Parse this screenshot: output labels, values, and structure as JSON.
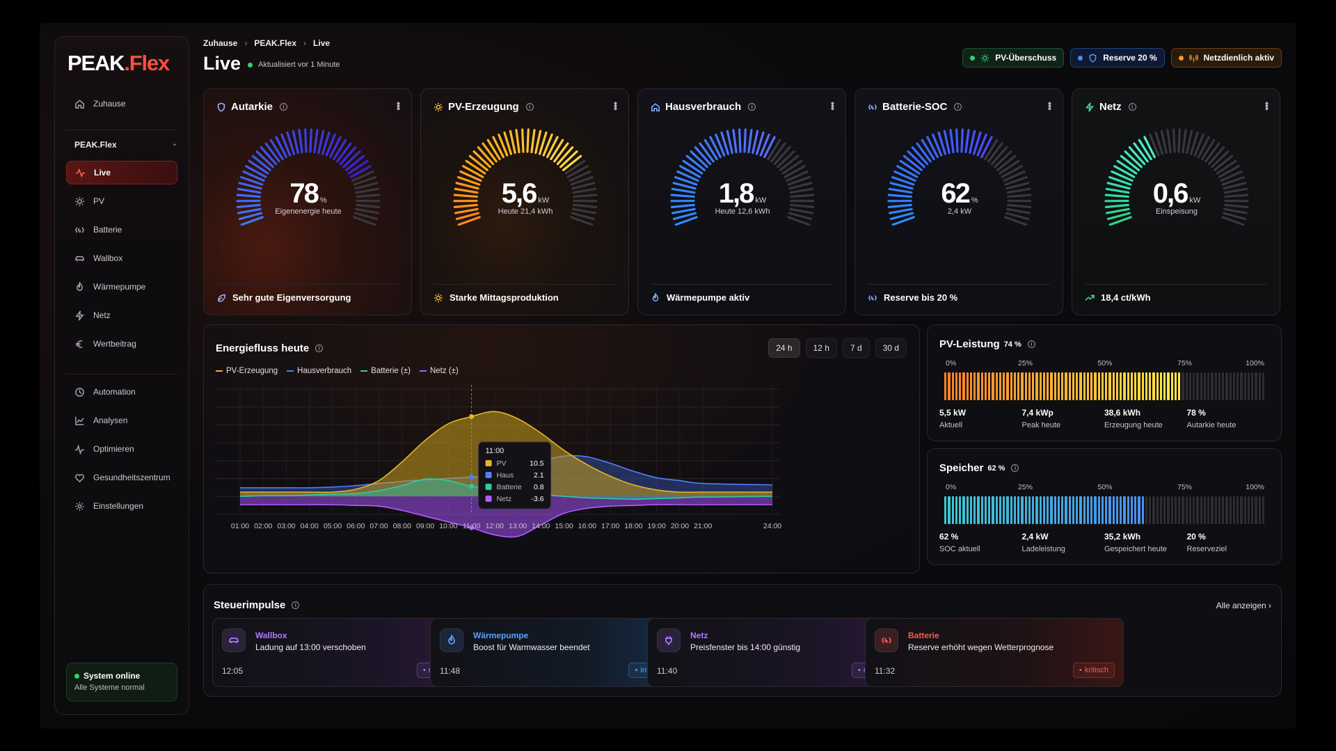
{
  "app": {
    "logo_main": "PEAK",
    "logo_dot": ".",
    "logo_flex": "Flex"
  },
  "sidebar": {
    "home": "Zuhause",
    "group": "PEAK.Flex",
    "items": [
      {
        "label": "Live",
        "icon": "activity-icon"
      },
      {
        "label": "PV",
        "icon": "sun-icon"
      },
      {
        "label": "Batterie",
        "icon": "battery-icon"
      },
      {
        "label": "Wallbox",
        "icon": "car-icon"
      },
      {
        "label": "Wärmepumpe",
        "icon": "flame-icon"
      },
      {
        "label": "Netz",
        "icon": "bolt-icon"
      },
      {
        "label": "Wertbeitrag",
        "icon": "euro-icon"
      }
    ],
    "tools": [
      {
        "label": "Automation"
      },
      {
        "label": "Analysen"
      },
      {
        "label": "Optimieren"
      },
      {
        "label": "Gesundheitszentrum"
      },
      {
        "label": "Einstellungen"
      }
    ],
    "status": {
      "title": "System online",
      "sub": "Alle Systeme normal"
    }
  },
  "header": {
    "breadcrumb": [
      "Zuhause",
      "PEAK.Flex",
      "Live"
    ],
    "title": "Live",
    "updated": "Aktualisiert vor 1 Minute",
    "chips": [
      {
        "label": "PV-Überschuss",
        "color": "#2fd46b"
      },
      {
        "label": "Reserve 20 %",
        "color": "#4a8cff"
      },
      {
        "label": "Netzdienlich aktiv",
        "color": "#f39a2b"
      }
    ]
  },
  "kpis": [
    {
      "title": "Autarkie",
      "value": "78",
      "unit": "%",
      "sub": "Eigenenergie heute",
      "footer": "Sehr gute Eigenversorgung",
      "fraction": 0.78
    },
    {
      "title": "PV-Erzeugung",
      "value": "5,6",
      "unit": "kW",
      "sub": "Heute 21,4 kWh",
      "footer": "Starke Mittagsproduktion",
      "fraction": 0.74
    },
    {
      "title": "Hausverbrauch",
      "value": "1,8",
      "unit": "kW",
      "sub": "Heute 12,6 kWh",
      "footer": "Wärmepumpe aktiv",
      "fraction": 0.62
    },
    {
      "title": "Batterie-SOC",
      "value": "62",
      "unit": "%",
      "sub": "2,4 kW",
      "footer": "Reserve bis 20 %",
      "fraction": 0.62
    },
    {
      "title": "Netz",
      "value": "0,6",
      "unit": "kW",
      "sub": "Einspeisung",
      "footer": "18,4 ct/kWh",
      "fraction": 0.4
    }
  ],
  "flow": {
    "title": "Energiefluss heute",
    "ranges": [
      "24 h",
      "12 h",
      "7 d",
      "30 d"
    ],
    "legend": [
      "PV-Erzeugung",
      "Hausverbrauch",
      "Batterie (±)",
      "Netz (±)"
    ],
    "tooltip": {
      "time": "11:00",
      "rows": [
        {
          "label": "PV",
          "value": "10.5"
        },
        {
          "label": "Haus",
          "value": "2.1"
        },
        {
          "label": "Batterie",
          "value": "0.8"
        },
        {
          "label": "Netz",
          "value": "-3.6"
        }
      ]
    }
  },
  "chart_data": {
    "type": "area",
    "title": "Energiefluss heute",
    "x": [
      "01:00",
      "02:00",
      "03:00",
      "04:00",
      "05:00",
      "06:00",
      "07:00",
      "08:00",
      "09:00",
      "10:00",
      "11:00",
      "12:00",
      "13:00",
      "14:00",
      "15:00",
      "16:00",
      "17:00",
      "18:00",
      "19:00",
      "20:00",
      "21:00",
      "24:00"
    ],
    "series": [
      {
        "name": "PV-Erzeugung",
        "values": [
          0,
          0,
          0,
          0,
          0,
          0.4,
          1.6,
          4.2,
          7.2,
          9.5,
          10.5,
          11.2,
          10.2,
          8.2,
          5.8,
          3.8,
          2.2,
          1.0,
          0.3,
          0,
          0,
          0
        ]
      },
      {
        "name": "Hausverbrauch",
        "values": [
          0.6,
          0.6,
          0.6,
          0.6,
          0.7,
          0.9,
          1.2,
          1.5,
          1.7,
          1.9,
          2.1,
          2.3,
          2.8,
          4.2,
          5.0,
          4.9,
          4.0,
          2.9,
          2.0,
          1.6,
          1.2,
          1.0
        ]
      },
      {
        "name": "Batterie (±)",
        "values": [
          -0.6,
          -0.5,
          -0.5,
          -0.4,
          -0.3,
          -0.2,
          0.2,
          0.9,
          1.8,
          1.6,
          0.8,
          0.6,
          0.2,
          -0.3,
          -0.6,
          -0.8,
          -0.9,
          -1.0,
          -0.9,
          -0.8,
          -0.7,
          -0.6
        ]
      },
      {
        "name": "Netz (±)",
        "values": [
          -0.4,
          -0.4,
          -0.4,
          -0.4,
          -0.4,
          -0.5,
          -0.6,
          -1.2,
          -2.0,
          -2.8,
          -3.6,
          -4.6,
          -4.8,
          -3.2,
          -1.6,
          -0.9,
          -0.6,
          -0.5,
          -0.4,
          -0.4,
          -0.4,
          -0.4
        ]
      }
    ],
    "legend_position": "top-left",
    "grid": true
  },
  "pv_perf": {
    "title": "PV-Leistung",
    "pct": "74 %",
    "fraction": 0.74,
    "scale": [
      "0%",
      "25%",
      "50%",
      "75%",
      "100%"
    ],
    "stats": [
      {
        "value": "5,5 kW",
        "label": "Aktuell"
      },
      {
        "value": "7,4 kWp",
        "label": "Peak heute"
      },
      {
        "value": "38,6 kWh",
        "label": "Erzeugung heute"
      },
      {
        "value": "78 %",
        "label": "Autarkie heute"
      }
    ]
  },
  "storage": {
    "title": "Speicher",
    "pct": "62 %",
    "fraction": 0.62,
    "scale": [
      "0%",
      "25%",
      "50%",
      "75%",
      "100%"
    ],
    "stats": [
      {
        "value": "62 %",
        "label": "SOC aktuell"
      },
      {
        "value": "2,4 kW",
        "label": "Ladeleistung"
      },
      {
        "value": "35,2 kWh",
        "label": "Gespeichert heute"
      },
      {
        "value": "20 %",
        "label": "Reserveziel"
      }
    ]
  },
  "impulses": {
    "title": "Steuerimpulse",
    "see_all": "Alle anzeigen ›",
    "items": [
      {
        "category": "Wallbox",
        "text": "Ladung auf 13:00 verschoben",
        "time": "12:05",
        "tag": "relevant",
        "color": "#b07cff"
      },
      {
        "category": "Wärmepumpe",
        "text": "Boost für Warmwasser beendet",
        "time": "11:48",
        "tag": "informativ",
        "color": "#5aa2ff"
      },
      {
        "category": "Netz",
        "text": "Preisfenster bis 14:00 günstig",
        "time": "11:40",
        "tag": "relevant",
        "color": "#b07cff"
      },
      {
        "category": "Batterie",
        "text": "Reserve erhöht wegen Wetterprognose",
        "time": "11:32",
        "tag": "kritisch",
        "color": "#ff5a4d"
      }
    ]
  }
}
